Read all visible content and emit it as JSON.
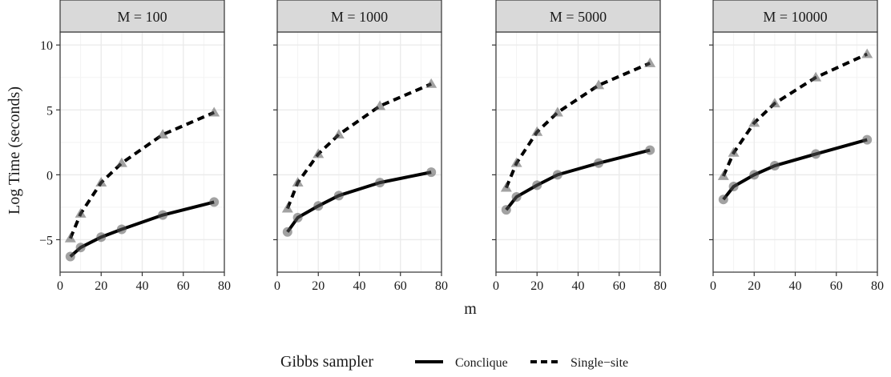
{
  "chart_data": {
    "type": "line",
    "xlabel": "m",
    "ylabel": "Log Time (seconds)",
    "xlim": [
      0,
      80
    ],
    "ylim": [
      -7.5,
      11
    ],
    "x_ticks": [
      0,
      20,
      40,
      60,
      80
    ],
    "y_ticks": [
      -5,
      0,
      5,
      10
    ],
    "grid": true,
    "legend": {
      "title": "Gibbs sampler",
      "position": "bottom",
      "entries": [
        "Conclique",
        "Single−site"
      ]
    },
    "colors": {
      "line": "#000000",
      "point": "#555555",
      "strip": "#d9d9d9",
      "grid": "#ebebeb"
    },
    "panels": [
      {
        "label": "M = 100",
        "series": [
          {
            "name": "Conclique",
            "x": [
              5,
              10,
              20,
              30,
              50,
              75
            ],
            "y": [
              -6.3,
              -5.6,
              -4.8,
              -4.2,
              -3.1,
              -2.1
            ]
          },
          {
            "name": "Single−site",
            "x": [
              5,
              10,
              20,
              30,
              50,
              75
            ],
            "y": [
              -4.9,
              -3.0,
              -0.6,
              0.9,
              3.1,
              4.8
            ]
          }
        ]
      },
      {
        "label": "M = 1000",
        "series": [
          {
            "name": "Conclique",
            "x": [
              5,
              10,
              20,
              30,
              50,
              75
            ],
            "y": [
              -4.4,
              -3.3,
              -2.4,
              -1.6,
              -0.6,
              0.2
            ]
          },
          {
            "name": "Single−site",
            "x": [
              5,
              10,
              20,
              30,
              50,
              75
            ],
            "y": [
              -2.6,
              -0.6,
              1.6,
              3.1,
              5.3,
              7.0
            ]
          }
        ]
      },
      {
        "label": "M = 5000",
        "series": [
          {
            "name": "Conclique",
            "x": [
              5,
              10,
              20,
              30,
              50,
              75
            ],
            "y": [
              -2.7,
              -1.7,
              -0.8,
              0.0,
              0.9,
              1.9
            ]
          },
          {
            "name": "Single−site",
            "x": [
              5,
              10,
              20,
              30,
              50,
              75
            ],
            "y": [
              -1.0,
              0.9,
              3.3,
              4.8,
              6.9,
              8.6
            ]
          }
        ]
      },
      {
        "label": "M = 10000",
        "series": [
          {
            "name": "Conclique",
            "x": [
              5,
              10,
              20,
              30,
              50,
              75
            ],
            "y": [
              -1.9,
              -0.9,
              0.0,
              0.7,
              1.6,
              2.7
            ]
          },
          {
            "name": "Single−site",
            "x": [
              5,
              10,
              20,
              30,
              50,
              75
            ],
            "y": [
              -0.1,
              1.7,
              4.0,
              5.5,
              7.5,
              9.3
            ]
          }
        ]
      }
    ]
  }
}
